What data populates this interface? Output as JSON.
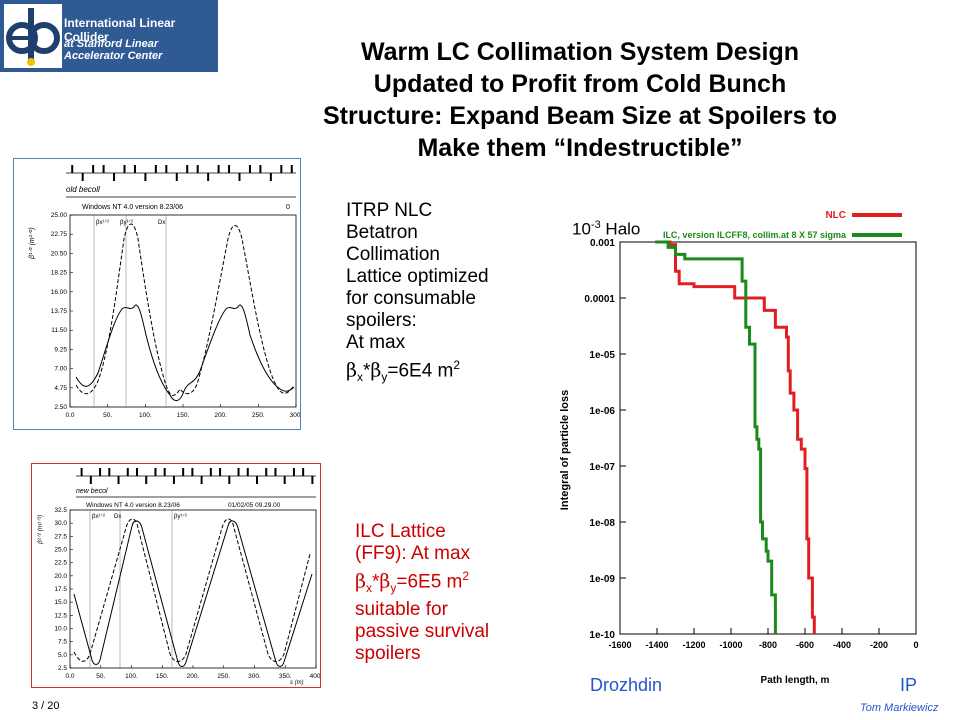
{
  "logo": {
    "mark": "e+e-",
    "line1": "International Linear Collider",
    "line2": "at Stanford Linear Accelerator Center"
  },
  "title": {
    "lines": [
      "Warm LC Collimation System Design",
      "Updated to Profit from Cold Bunch",
      "Structure: Expand Beam Size at Spoilers to",
      "Make them “Indestructible”"
    ]
  },
  "itrp_note": {
    "lines": [
      "ITRP NLC",
      "Betatron",
      "Collimation",
      "Lattice optimized",
      "for consumable",
      "spoilers:",
      "At max"
    ],
    "formula": "=6E4 m"
  },
  "ilc_note": {
    "lines": [
      "ILC Lattice",
      "(FF9): At max"
    ],
    "formula": "=6E5 m",
    "tail": [
      "suitable for",
      "passive survival",
      "spoilers"
    ]
  },
  "plot1": {
    "name": "old becoll",
    "version": "Windows NT 4.0 version 8.23/06",
    "corner": "0",
    "ylabel": "β¹ᐟ² (m¹ᐟ²)",
    "yticks": [
      "25.00",
      "22.75",
      "20.50",
      "18.25",
      "16.00",
      "13.75",
      "11.50",
      "9.25",
      "7.00",
      "4.75",
      "2.50"
    ],
    "xticks": [
      "0.0",
      "50.",
      "100.",
      "150.",
      "200.",
      "250.",
      "300."
    ],
    "markers": [
      "βx¹ᐟ²",
      "βy¹ᐟ²",
      "Dx"
    ]
  },
  "plot2": {
    "name": "new becol",
    "version": "Windows NT 4.0 version 8.23/06",
    "date": "01/02/05  09.29.00",
    "ylabel": "β¹ᐟ² (m¹ᐟ²)",
    "yticks": [
      "32.5",
      "30.0",
      "27.5",
      "25.0",
      "22.5",
      "20.0",
      "17.5",
      "15.0",
      "12.5",
      "10.0",
      "7.5",
      "5.0",
      "2.5"
    ],
    "xticks": [
      "0.0",
      "50.",
      "100.",
      "150.",
      "200.",
      "250.",
      "300.",
      "350.",
      "400."
    ],
    "xunit": "s (m)",
    "markers": [
      "βx¹ᐟ²",
      "Dx",
      "βy¹ᐟ²"
    ]
  },
  "chart_data": {
    "type": "line",
    "ylabel": "Integral of particle loss",
    "xlabel": "Path length, m",
    "xlim": [
      -1600,
      0
    ],
    "ylim_log10": [
      -10,
      -3
    ],
    "xticks": [
      "-1600",
      "-1400",
      "-1200",
      "-1000",
      "-800",
      "-600",
      "-400",
      "-200",
      "0"
    ],
    "yticks": [
      "0.001",
      "0.0001",
      "1e-05",
      "1e-06",
      "1e-07",
      "1e-08",
      "1e-09",
      "1e-10"
    ],
    "series": [
      {
        "name": "NLC",
        "color": "#e02020",
        "points": [
          [
            -1400,
            0.001
          ],
          [
            -1330,
            0.0009
          ],
          [
            -1300,
            0.0003
          ],
          [
            -1280,
            0.00018
          ],
          [
            -1200,
            0.00016
          ],
          [
            -1100,
            0.00016
          ],
          [
            -1000,
            0.00016
          ],
          [
            -980,
            0.0001
          ],
          [
            -900,
            0.0001
          ],
          [
            -850,
            0.0001
          ],
          [
            -820,
            6e-05
          ],
          [
            -760,
            3e-05
          ],
          [
            -740,
            3e-05
          ],
          [
            -700,
            2e-05
          ],
          [
            -690,
            5e-06
          ],
          [
            -680,
            2e-06
          ],
          [
            -660,
            1e-06
          ],
          [
            -640,
            3e-07
          ],
          [
            -620,
            2e-07
          ],
          [
            -600,
            9e-08
          ],
          [
            -590,
            5e-09
          ],
          [
            -580,
            1e-09
          ],
          [
            -560,
            2e-10
          ],
          [
            -550,
            1e-10
          ]
        ]
      },
      {
        "name": "ILC, version ILCFF8, collim.at 8 X 57 sigma",
        "color": "#1a8a1a",
        "points": [
          [
            -1410,
            0.001
          ],
          [
            -1360,
            0.001
          ],
          [
            -1340,
            0.0008
          ],
          [
            -1300,
            0.0006
          ],
          [
            -1250,
            0.0005
          ],
          [
            -1100,
            0.0005
          ],
          [
            -1000,
            0.0005
          ],
          [
            -960,
            0.0005
          ],
          [
            -940,
            0.0002
          ],
          [
            -920,
            3e-05
          ],
          [
            -900,
            1.5e-05
          ],
          [
            -880,
            1.5e-05
          ],
          [
            -870,
            5e-07
          ],
          [
            -860,
            3e-07
          ],
          [
            -850,
            2e-07
          ],
          [
            -840,
            1e-08
          ],
          [
            -830,
            5e-09
          ],
          [
            -810,
            3e-09
          ],
          [
            -800,
            2e-09
          ],
          [
            -780,
            5e-10
          ],
          [
            -760,
            1e-10
          ]
        ]
      }
    ]
  },
  "annotations": {
    "halo_base": "10",
    "halo_exp": "-3",
    "halo_word": " Halo",
    "left_label": "Drozhdin",
    "right_label": "IP"
  },
  "footer": {
    "page": "3 / 20",
    "author": "Tom Markiewicz"
  }
}
